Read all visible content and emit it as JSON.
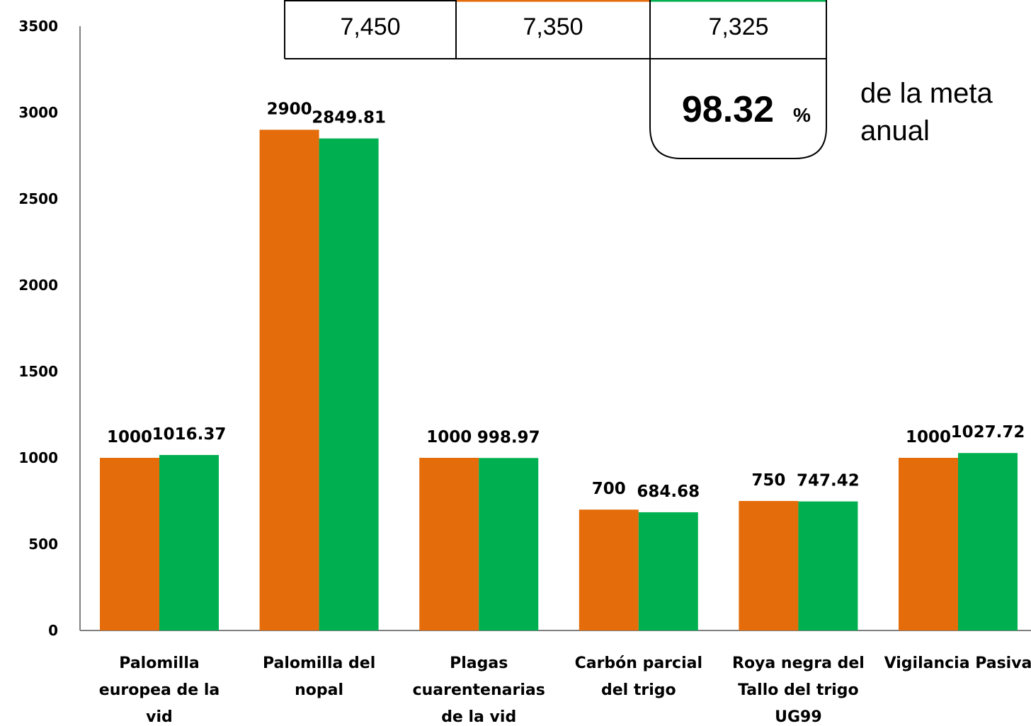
{
  "chart_data": {
    "type": "bar",
    "categories": [
      [
        "Palomilla",
        "europea de la",
        "vid"
      ],
      [
        "Palomilla del",
        "nopal"
      ],
      [
        "Plagas",
        "cuarentenarias",
        "de la vid"
      ],
      [
        "Carbón parcial",
        "del trigo"
      ],
      [
        "Roya negra del",
        "Tallo del trigo",
        "UG99"
      ],
      [
        "Vigilancia Pasiva"
      ]
    ],
    "series": [
      {
        "color": "#E46C0A",
        "values": [
          1000,
          2900,
          1000,
          700,
          750,
          1000
        ],
        "labels": [
          "1000",
          "2900",
          "1000",
          "700",
          "750",
          "1000"
        ]
      },
      {
        "color": "#00B050",
        "values": [
          1016.37,
          2849.81,
          998.97,
          684.68,
          747.42,
          1027.72
        ],
        "labels": [
          "1016.37",
          "2849.81",
          "998.97",
          "684.68",
          "747.42",
          "1027.72"
        ]
      }
    ],
    "yticks": [
      "0",
      "500",
      "1000",
      "1500",
      "2000",
      "2500",
      "3000",
      "3500"
    ],
    "ylim": [
      0,
      3500
    ],
    "grid": false,
    "legend": "none"
  },
  "summary_table": {
    "values": [
      "7,450",
      "7,350",
      "7,325"
    ],
    "header_colors": [
      "#000000",
      "#E46C0A",
      "#00B050"
    ],
    "percent": "98.32",
    "percent_sign": "%",
    "note_lines": [
      "de la meta",
      "anual"
    ]
  }
}
